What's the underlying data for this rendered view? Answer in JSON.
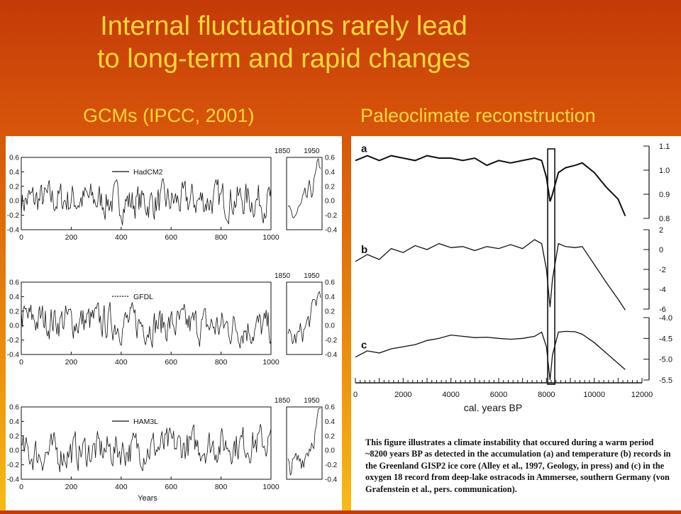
{
  "slide": {
    "title_line1": "Internal fluctuations rarely lead",
    "title_line2": "to long-term and rapid changes",
    "left_heading": "GCMs (IPCC, 2001)",
    "right_heading": "Paleoclimate reconstruction"
  },
  "colors": {
    "title": "#ffd83a",
    "background_top": "#c43a08",
    "background_bottom": "#f7bb14",
    "trace": "#111111"
  },
  "chart_data": [
    {
      "type": "line",
      "panel": "gcm",
      "series": [
        {
          "name": "HadCM2"
        }
      ],
      "x_range": [
        0,
        1000
      ],
      "ylim": [
        -0.4,
        0.6
      ],
      "x_ticks": [
        "0",
        "200",
        "400",
        "600",
        "800",
        "1000"
      ],
      "y_ticks": [
        "0.6",
        "0.4",
        "0.2",
        "0.0",
        "-0.2",
        "-0.4"
      ],
      "inset": {
        "x_range": [
          1850,
          2000
        ],
        "x_ticks": [
          "1850",
          "1950"
        ]
      },
      "xlabel": ""
    },
    {
      "type": "line",
      "panel": "gcm",
      "series": [
        {
          "name": "GFDL"
        }
      ],
      "x_range": [
        0,
        1000
      ],
      "ylim": [
        -0.4,
        0.6
      ],
      "x_ticks": [
        "0",
        "200",
        "400",
        "600",
        "800",
        "1000"
      ],
      "y_ticks": [
        "0.6",
        "0.4",
        "0.2",
        "0.0",
        "-0.2",
        "-0.4"
      ],
      "inset": {
        "x_range": [
          1850,
          2000
        ],
        "x_ticks": [
          "1850",
          "1950"
        ]
      },
      "xlabel": ""
    },
    {
      "type": "line",
      "panel": "gcm",
      "series": [
        {
          "name": "HAM3L"
        }
      ],
      "x_range": [
        0,
        1000
      ],
      "ylim": [
        -0.4,
        0.6
      ],
      "x_ticks": [
        "0",
        "200",
        "400",
        "600",
        "800",
        "1000"
      ],
      "y_ticks": [
        "0.6",
        "0.4",
        "0.2",
        "0.0",
        "-0.2",
        "-0.4"
      ],
      "inset": {
        "x_range": [
          1850,
          2000
        ],
        "x_ticks": [
          "1850",
          "1950"
        ]
      },
      "xlabel": "Years"
    },
    {
      "type": "line",
      "panel": "paleo",
      "x_range": [
        0,
        12000
      ],
      "x_ticks": [
        "0",
        "2000",
        "4000",
        "6000",
        "8000",
        "10000",
        "12000"
      ],
      "xlabel": "cal. years BP",
      "event_x": 8200,
      "series": [
        {
          "name": "a",
          "y_ticks": [
            "1.1",
            "1.0",
            "0.9",
            "0.8"
          ],
          "points": [
            [
              0,
              1.04
            ],
            [
              500,
              1.06
            ],
            [
              1000,
              1.04
            ],
            [
              1500,
              1.06
            ],
            [
              2000,
              1.05
            ],
            [
              2500,
              1.04
            ],
            [
              3000,
              1.06
            ],
            [
              3500,
              1.05
            ],
            [
              4000,
              1.05
            ],
            [
              4500,
              1.04
            ],
            [
              5000,
              1.05
            ],
            [
              5500,
              1.02
            ],
            [
              6000,
              1.04
            ],
            [
              6500,
              1.03
            ],
            [
              7000,
              1.04
            ],
            [
              7500,
              1.05
            ],
            [
              7800,
              1.04
            ],
            [
              8000,
              0.97
            ],
            [
              8150,
              0.87
            ],
            [
              8250,
              0.9
            ],
            [
              8500,
              0.99
            ],
            [
              8800,
              1.01
            ],
            [
              9200,
              1.02
            ],
            [
              9500,
              1.03
            ],
            [
              10000,
              0.99
            ],
            [
              10500,
              0.93
            ],
            [
              11000,
              0.88
            ],
            [
              11300,
              0.81
            ]
          ]
        },
        {
          "name": "b",
          "y_ticks": [
            "2",
            "0",
            "-2",
            "-4",
            "-6"
          ],
          "points": [
            [
              0,
              -1.2
            ],
            [
              500,
              -0.5
            ],
            [
              1000,
              -1.0
            ],
            [
              1500,
              0.1
            ],
            [
              2000,
              -0.3
            ],
            [
              2500,
              0.4
            ],
            [
              3000,
              0.0
            ],
            [
              3500,
              0.6
            ],
            [
              4000,
              0.2
            ],
            [
              4500,
              0.3
            ],
            [
              5000,
              -0.1
            ],
            [
              5500,
              0.3
            ],
            [
              6000,
              0.1
            ],
            [
              6500,
              0.5
            ],
            [
              7000,
              0.1
            ],
            [
              7500,
              1.0
            ],
            [
              7800,
              0.6
            ],
            [
              8000,
              -2.0
            ],
            [
              8150,
              -5.8
            ],
            [
              8250,
              -3.0
            ],
            [
              8500,
              0.6
            ],
            [
              8800,
              0.3
            ],
            [
              9200,
              0.2
            ],
            [
              9500,
              0.3
            ],
            [
              10000,
              -1.5
            ],
            [
              10500,
              -3.3
            ],
            [
              11000,
              -5.0
            ],
            [
              11300,
              -6.1
            ]
          ]
        },
        {
          "name": "c",
          "y_ticks": [
            "-4.0",
            "-4.5",
            "-5.0",
            "-5.5"
          ],
          "points": [
            [
              0,
              -4.95
            ],
            [
              500,
              -4.8
            ],
            [
              1000,
              -4.85
            ],
            [
              1500,
              -4.75
            ],
            [
              2000,
              -4.7
            ],
            [
              2500,
              -4.65
            ],
            [
              3000,
              -4.55
            ],
            [
              3500,
              -4.5
            ],
            [
              4000,
              -4.42
            ],
            [
              4500,
              -4.45
            ],
            [
              5000,
              -4.48
            ],
            [
              5500,
              -4.47
            ],
            [
              6000,
              -4.5
            ],
            [
              6500,
              -4.52
            ],
            [
              7000,
              -4.5
            ],
            [
              7500,
              -4.45
            ],
            [
              7800,
              -4.35
            ],
            [
              8000,
              -4.7
            ],
            [
              8150,
              -5.5
            ],
            [
              8250,
              -4.9
            ],
            [
              8500,
              -4.35
            ],
            [
              8800,
              -4.33
            ],
            [
              9200,
              -4.34
            ],
            [
              9500,
              -4.4
            ],
            [
              10000,
              -4.6
            ],
            [
              10500,
              -4.85
            ],
            [
              11000,
              -5.1
            ],
            [
              11300,
              -5.25
            ]
          ]
        }
      ]
    }
  ],
  "caption": "This figure illustrates a climate instability that occured during a warm period ~8200 years BP as detected in the accumulation (a) and temperature (b) records in the Greenland GISP2 ice core (Alley et al., 1997, Geology, in press) and (c) in the oxygen 18 record from deep-lake ostracods in Ammersee, southern Germany (von Grafenstein et al., pers. communication)."
}
